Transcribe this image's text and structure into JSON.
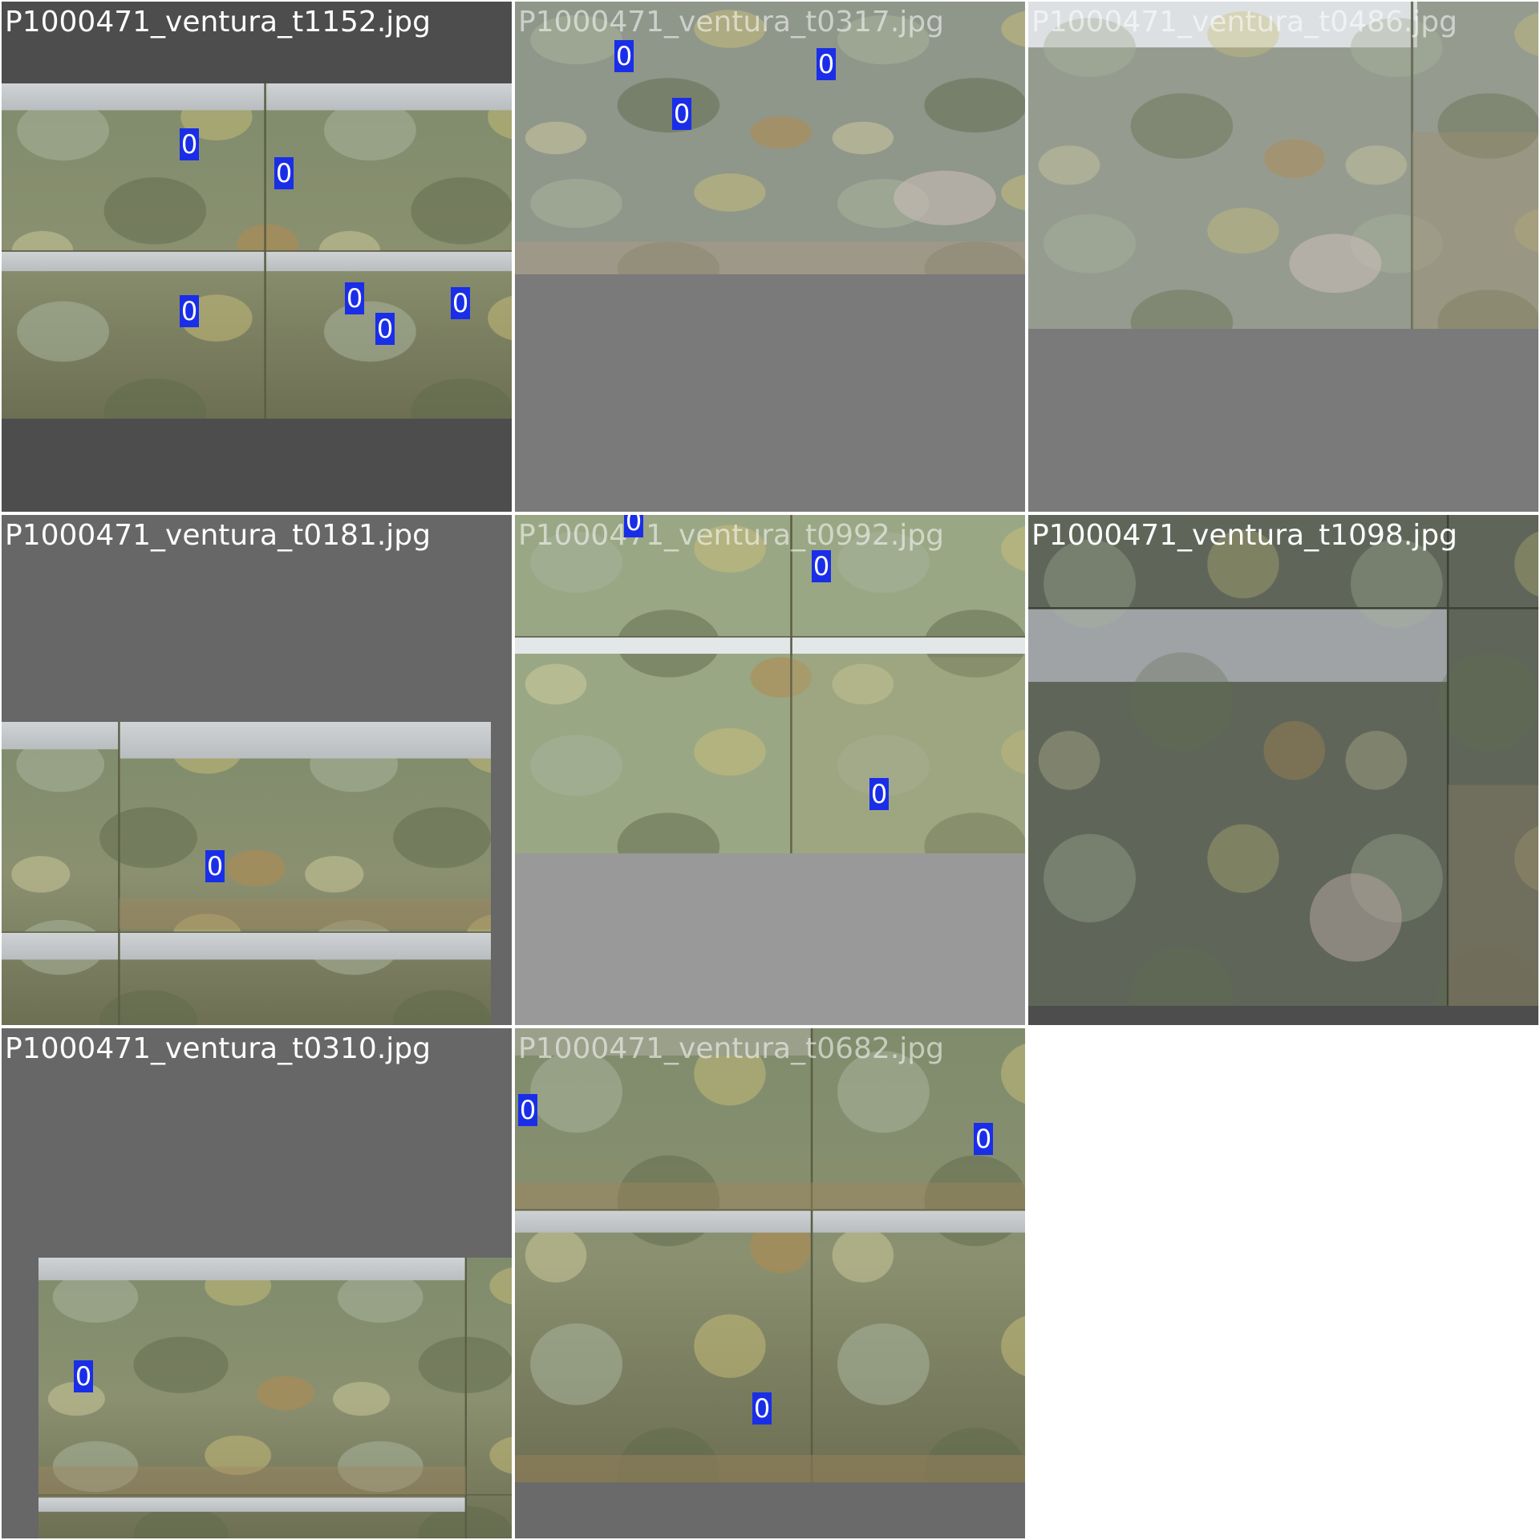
{
  "mosaic": {
    "tiles": [
      {
        "caption": "P1000471_ventura_t1152.jpg",
        "detections": [
          {
            "class": "0"
          },
          {
            "class": "0"
          },
          {
            "class": "0"
          },
          {
            "class": "0"
          },
          {
            "class": "0"
          },
          {
            "class": "0"
          }
        ]
      },
      {
        "caption": "P1000471_ventura_t0317.jpg",
        "detections": [
          {
            "class": "0"
          },
          {
            "class": "0"
          },
          {
            "class": "0"
          }
        ]
      },
      {
        "caption": "P1000471_ventura_t0486.jpg",
        "detections": []
      },
      {
        "caption": "P1000471_ventura_t0181.jpg",
        "detections": [
          {
            "class": "0"
          }
        ]
      },
      {
        "caption": "P1000471_ventura_t0992.jpg",
        "detections": [
          {
            "class": "0"
          },
          {
            "class": "0"
          },
          {
            "class": "0"
          }
        ]
      },
      {
        "caption": "P1000471_ventura_t1098.jpg",
        "detections": []
      },
      {
        "caption": "P1000471_ventura_t0310.jpg",
        "detections": [
          {
            "class": "0"
          }
        ]
      },
      {
        "caption": "P1000471_ventura_t0682.jpg",
        "detections": [
          {
            "class": "0"
          },
          {
            "class": "0"
          },
          {
            "class": "0"
          }
        ]
      }
    ]
  }
}
